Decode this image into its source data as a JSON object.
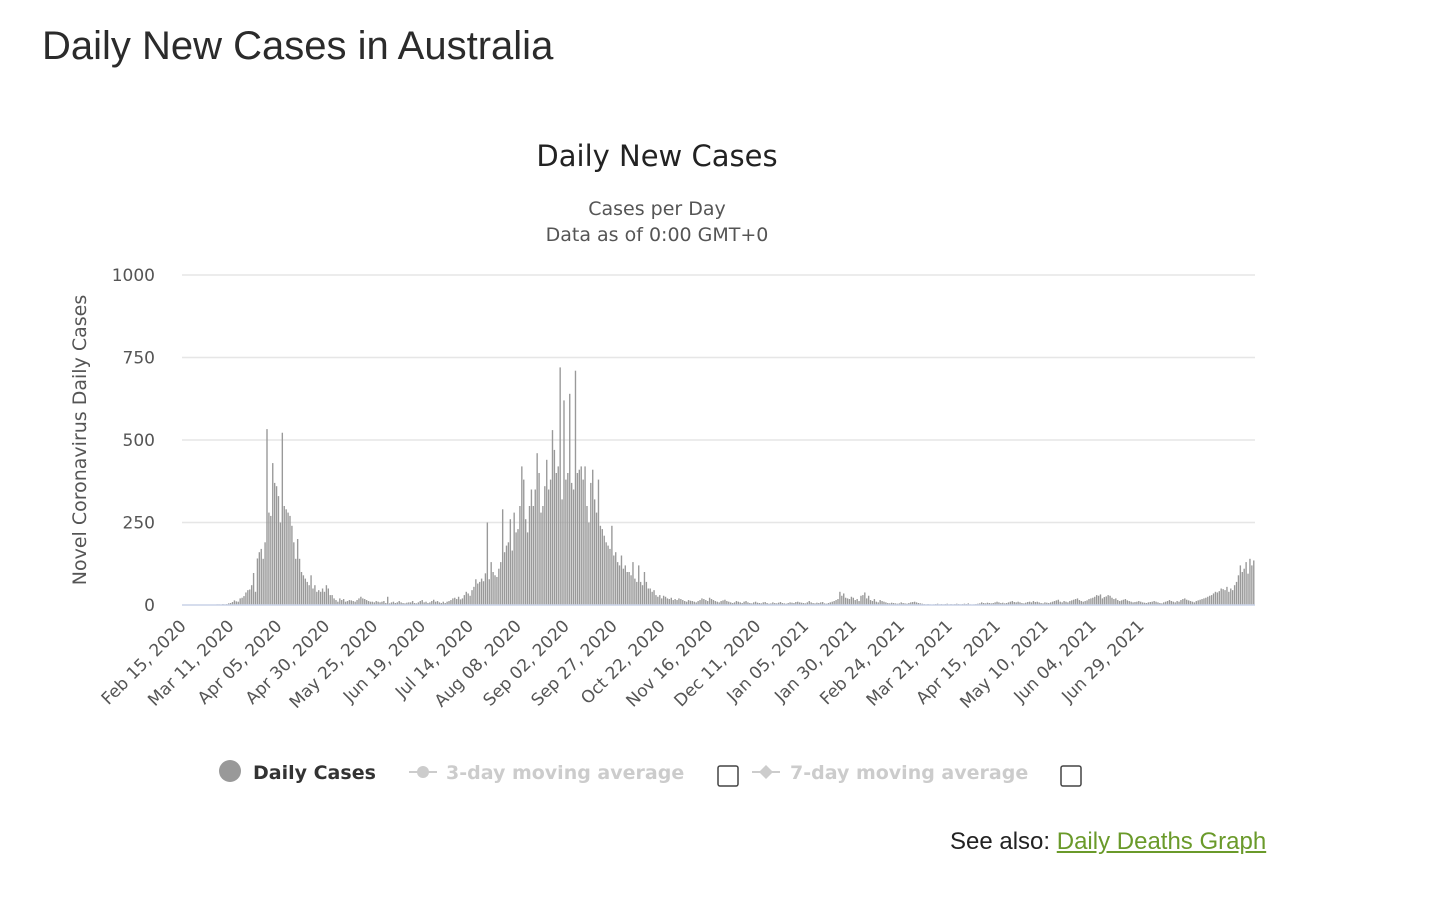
{
  "page": {
    "title": "Daily New Cases in Australia",
    "see_also_label": "See also:",
    "see_also_link": "Daily Deaths Graph"
  },
  "chart_data": {
    "type": "bar",
    "title": "Daily New Cases",
    "subtitle_lines": [
      "Cases per Day",
      "Data as of 0:00 GMT+0"
    ],
    "ylabel": "Novel Coronavirus Daily Cases",
    "ylim": [
      0,
      1000
    ],
    "yticks": [
      0,
      250,
      500,
      750,
      1000
    ],
    "grid": true,
    "x_start": "Feb 15, 2020",
    "x_end": "Jul 19, 2021",
    "x_tick_labels": [
      "Feb 15, 2020",
      "Mar 11, 2020",
      "Apr 05, 2020",
      "Apr 30, 2020",
      "May 25, 2020",
      "Jun 19, 2020",
      "Jul 14, 2020",
      "Aug 08, 2020",
      "Sep 02, 2020",
      "Sep 27, 2020",
      "Oct 22, 2020",
      "Nov 16, 2020",
      "Dec 11, 2020",
      "Jan 05, 2021",
      "Jan 30, 2021",
      "Feb 24, 2021",
      "Mar 21, 2021",
      "Apr 15, 2021",
      "May 10, 2021",
      "Jun 04, 2021",
      "Jun 29, 2021"
    ],
    "bar_color": "#999999",
    "legend": {
      "placement": "bottom",
      "items": [
        {
          "label": "Daily Cases",
          "active": true,
          "color": "#999999",
          "marker": "circle"
        },
        {
          "label": "3-day moving average",
          "active": false,
          "color": "#cccccc",
          "marker": "circle",
          "checkbox": true
        },
        {
          "label": "7-day moving average",
          "active": false,
          "color": "#cccccc",
          "marker": "diamond",
          "checkbox": true
        }
      ]
    },
    "series": [
      {
        "name": "Daily Cases",
        "values": [
          0,
          0,
          0,
          0,
          0,
          0,
          0,
          0,
          0,
          0,
          0,
          0,
          0,
          1,
          0,
          1,
          0,
          0,
          2,
          2,
          1,
          3,
          2,
          3,
          5,
          6,
          9,
          14,
          11,
          10,
          20,
          22,
          27,
          38,
          45,
          47,
          60,
          97,
          40,
          141,
          160,
          170,
          140,
          190,
          533,
          280,
          270,
          430,
          370,
          360,
          330,
          250,
          522,
          300,
          290,
          280,
          270,
          240,
          190,
          140,
          200,
          140,
          100,
          90,
          80,
          70,
          60,
          90,
          50,
          60,
          40,
          45,
          40,
          50,
          40,
          60,
          50,
          30,
          30,
          20,
          15,
          10,
          20,
          15,
          18,
          10,
          12,
          15,
          14,
          12,
          10,
          15,
          20,
          25,
          20,
          18,
          15,
          12,
          10,
          10,
          8,
          12,
          10,
          8,
          10,
          12,
          6,
          25,
          5,
          8,
          10,
          6,
          8,
          12,
          8,
          6,
          5,
          7,
          8,
          8,
          12,
          6,
          5,
          8,
          12,
          15,
          8,
          10,
          6,
          8,
          12,
          16,
          10,
          12,
          8,
          6,
          10,
          6,
          10,
          12,
          15,
          20,
          22,
          18,
          25,
          17,
          20,
          30,
          40,
          35,
          28,
          45,
          55,
          78,
          65,
          70,
          80,
          72,
          96,
          250,
          78,
          130,
          100,
          90,
          85,
          110,
          130,
          290,
          160,
          180,
          190,
          260,
          165,
          280,
          220,
          230,
          300,
          420,
          380,
          260,
          220,
          300,
          350,
          300,
          350,
          460,
          400,
          280,
          300,
          360,
          440,
          350,
          380,
          530,
          470,
          400,
          420,
          720,
          320,
          620,
          380,
          400,
          640,
          370,
          350,
          710,
          400,
          410,
          420,
          380,
          420,
          300,
          250,
          370,
          410,
          320,
          280,
          380,
          240,
          230,
          210,
          190,
          180,
          170,
          240,
          150,
          160,
          130,
          120,
          150,
          110,
          120,
          100,
          100,
          90,
          130,
          80,
          70,
          120,
          70,
          60,
          100,
          70,
          50,
          50,
          40,
          45,
          30,
          25,
          30,
          20,
          28,
          25,
          20,
          18,
          22,
          15,
          18,
          15,
          20,
          18,
          15,
          12,
          10,
          15,
          13,
          12,
          10,
          8,
          12,
          15,
          20,
          18,
          15,
          12,
          22,
          18,
          15,
          12,
          10,
          8,
          12,
          14,
          16,
          12,
          10,
          8,
          6,
          8,
          12,
          10,
          8,
          6,
          10,
          12,
          8,
          6,
          5,
          8,
          10,
          7,
          6,
          5,
          8,
          9,
          6,
          4,
          5,
          8,
          6,
          5,
          7,
          9,
          6,
          5,
          4,
          6,
          8,
          7,
          6,
          9,
          10,
          8,
          7,
          6,
          5,
          8,
          12,
          8,
          6,
          5,
          7,
          6,
          8,
          9,
          5,
          4,
          6,
          8,
          10,
          12,
          15,
          18,
          40,
          28,
          35,
          22,
          20,
          18,
          25,
          22,
          15,
          18,
          12,
          28,
          30,
          38,
          20,
          28,
          15,
          12,
          18,
          10,
          8,
          15,
          12,
          10,
          8,
          6,
          5,
          7,
          6,
          5,
          4,
          5,
          8,
          6,
          5,
          4,
          6,
          8,
          9,
          10,
          8,
          6,
          5,
          4,
          3,
          2,
          3,
          2,
          1,
          2,
          3,
          4,
          2,
          3,
          2,
          3,
          4,
          2,
          3,
          2,
          3,
          4,
          3,
          2,
          3,
          4,
          3,
          5,
          2,
          1,
          2,
          3,
          4,
          5,
          8,
          6,
          5,
          7,
          6,
          5,
          6,
          8,
          10,
          8,
          6,
          7,
          5,
          6,
          8,
          10,
          12,
          9,
          8,
          10,
          8,
          6,
          5,
          7,
          9,
          10,
          8,
          12,
          9,
          10,
          8,
          6,
          5,
          8,
          7,
          6,
          8,
          10,
          12,
          14,
          16,
          10,
          8,
          12,
          10,
          8,
          12,
          14,
          16,
          18,
          20,
          15,
          12,
          10,
          12,
          14,
          18,
          20,
          22,
          25,
          30,
          28,
          32,
          20,
          24,
          26,
          30,
          28,
          22,
          18,
          20,
          15,
          12,
          14,
          16,
          18,
          14,
          12,
          10,
          8,
          9,
          10,
          12,
          10,
          8,
          7,
          6,
          8,
          9,
          10,
          12,
          10,
          8,
          6,
          5,
          8,
          10,
          12,
          15,
          12,
          10,
          8,
          12,
          10,
          15,
          18,
          20,
          16,
          14,
          12,
          10,
          8,
          12,
          14,
          16,
          18,
          20,
          22,
          25,
          28,
          30,
          35,
          40,
          38,
          42,
          50,
          48,
          45,
          55,
          40,
          50,
          45,
          60,
          70,
          90,
          120,
          100,
          110,
          130,
          95,
          140,
          120,
          135
        ]
      }
    ]
  }
}
